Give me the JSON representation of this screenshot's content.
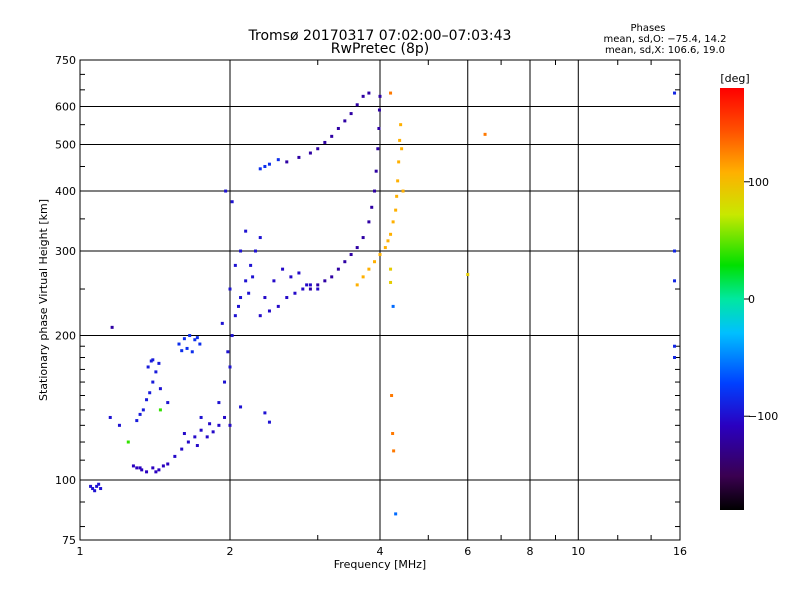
{
  "chart_data": {
    "type": "scatter",
    "title": "Tromsø 20170317 07:02:00–07:03:43",
    "subtitle": "RwPretec (8p)",
    "xlabel": "Frequency [MHz]",
    "ylabel": "Stationary phase Virtual Height [km]",
    "x_scale": "log",
    "y_scale": "log",
    "xlim": [
      1,
      16
    ],
    "ylim": [
      75,
      750
    ],
    "x_ticks": [
      1,
      2,
      4,
      6,
      8,
      10,
      16
    ],
    "x_tick_labels": [
      "1",
      "2",
      "4",
      "6",
      "8",
      "10",
      "16"
    ],
    "y_ticks": [
      75,
      100,
      200,
      300,
      400,
      500,
      600,
      750
    ],
    "y_tick_labels": [
      "75",
      "100",
      "200",
      "300",
      "400",
      "500",
      "600",
      "750"
    ],
    "grid": true,
    "stats": {
      "heading": "Phases",
      "line_o": "mean, sd,O: −75.4, 14.2",
      "line_x": "mean, sd,X: 106.6, 19.0"
    },
    "colorbar": {
      "label": "[deg]",
      "range": [
        -180,
        180
      ],
      "ticks": [
        100,
        0,
        -100
      ],
      "tick_labels": [
        "100",
        "0",
        "−100"
      ]
    },
    "series": [
      {
        "phase": -100,
        "points": [
          [
            1.05,
            97
          ],
          [
            1.06,
            96
          ],
          [
            1.08,
            97
          ],
          [
            1.09,
            98
          ],
          [
            1.07,
            95
          ],
          [
            1.1,
            96
          ]
        ]
      },
      {
        "phase": -110,
        "points": [
          [
            1.28,
            107
          ],
          [
            1.3,
            106
          ],
          [
            1.33,
            105
          ],
          [
            1.36,
            104
          ],
          [
            1.4,
            106
          ],
          [
            1.44,
            105
          ],
          [
            1.47,
            107
          ],
          [
            1.5,
            108
          ],
          [
            1.32,
            106
          ],
          [
            1.42,
            104
          ]
        ]
      },
      {
        "phase": -95,
        "points": [
          [
            1.3,
            133
          ],
          [
            1.32,
            137
          ],
          [
            1.34,
            140
          ],
          [
            1.36,
            147
          ],
          [
            1.38,
            152
          ],
          [
            1.4,
            160
          ],
          [
            1.42,
            168
          ],
          [
            1.44,
            175
          ],
          [
            1.4,
            178
          ],
          [
            1.37,
            172
          ],
          [
            1.39,
            177
          ]
        ]
      },
      {
        "phase": -85,
        "points": [
          [
            1.58,
            192
          ],
          [
            1.62,
            197
          ],
          [
            1.66,
            200
          ],
          [
            1.7,
            196
          ],
          [
            1.74,
            192
          ],
          [
            1.68,
            185
          ],
          [
            1.64,
            188
          ],
          [
            1.72,
            198
          ],
          [
            1.6,
            186
          ]
        ]
      },
      {
        "phase": -105,
        "points": [
          [
            1.55,
            112
          ],
          [
            1.6,
            116
          ],
          [
            1.65,
            120
          ],
          [
            1.7,
            123
          ],
          [
            1.75,
            127
          ],
          [
            1.8,
            123
          ],
          [
            1.85,
            126
          ],
          [
            1.9,
            130
          ],
          [
            1.95,
            135
          ],
          [
            2.0,
            130
          ],
          [
            1.62,
            125
          ],
          [
            1.72,
            118
          ],
          [
            1.82,
            131
          ]
        ]
      },
      {
        "phase": -100,
        "points": [
          [
            1.9,
            145
          ],
          [
            1.95,
            160
          ],
          [
            2.0,
            172
          ],
          [
            1.98,
            185
          ],
          [
            2.02,
            200
          ],
          [
            2.05,
            220
          ],
          [
            2.1,
            240
          ],
          [
            2.15,
            260
          ],
          [
            2.2,
            280
          ],
          [
            2.25,
            300
          ],
          [
            2.3,
            320
          ],
          [
            2.05,
            280
          ],
          [
            2.1,
            300
          ],
          [
            2.15,
            330
          ],
          [
            2.0,
            250
          ],
          [
            2.08,
            230
          ],
          [
            2.18,
            245
          ],
          [
            2.22,
            265
          ],
          [
            1.96,
            400
          ],
          [
            2.02,
            380
          ],
          [
            1.93,
            212
          ]
        ]
      },
      {
        "phase": -105,
        "points": [
          [
            2.3,
            220
          ],
          [
            2.4,
            225
          ],
          [
            2.5,
            230
          ],
          [
            2.6,
            240
          ],
          [
            2.7,
            245
          ],
          [
            2.8,
            250
          ],
          [
            2.9,
            255
          ],
          [
            3.0,
            250
          ],
          [
            2.45,
            260
          ],
          [
            2.55,
            275
          ],
          [
            2.65,
            265
          ],
          [
            2.75,
            270
          ],
          [
            2.85,
            255
          ],
          [
            2.35,
            240
          ]
        ]
      },
      {
        "phase": -120,
        "points": [
          [
            2.9,
            250
          ],
          [
            3.0,
            255
          ],
          [
            3.1,
            260
          ],
          [
            3.2,
            265
          ],
          [
            3.3,
            275
          ],
          [
            3.4,
            285
          ],
          [
            3.5,
            295
          ],
          [
            3.6,
            305
          ],
          [
            3.7,
            320
          ],
          [
            3.8,
            345
          ],
          [
            3.85,
            370
          ],
          [
            3.9,
            400
          ],
          [
            3.93,
            440
          ],
          [
            3.96,
            490
          ],
          [
            3.98,
            540
          ],
          [
            3.99,
            590
          ],
          [
            4.0,
            630
          ]
        ]
      },
      {
        "phase": -120,
        "points": [
          [
            2.6,
            460
          ],
          [
            2.75,
            470
          ],
          [
            2.9,
            480
          ],
          [
            3.0,
            490
          ],
          [
            3.1,
            505
          ],
          [
            3.2,
            520
          ],
          [
            3.3,
            540
          ],
          [
            3.4,
            560
          ],
          [
            3.5,
            580
          ],
          [
            3.6,
            605
          ],
          [
            3.7,
            630
          ],
          [
            3.8,
            640
          ]
        ]
      },
      {
        "phase": -85,
        "points": [
          [
            2.3,
            445
          ],
          [
            2.35,
            450
          ],
          [
            2.4,
            455
          ],
          [
            2.5,
            465
          ]
        ]
      },
      {
        "phase": 110,
        "points": [
          [
            3.6,
            255
          ],
          [
            3.7,
            265
          ],
          [
            3.8,
            275
          ],
          [
            3.9,
            285
          ],
          [
            4.0,
            295
          ],
          [
            4.1,
            305
          ],
          [
            4.15,
            315
          ],
          [
            4.2,
            325
          ],
          [
            4.25,
            345
          ],
          [
            4.3,
            365
          ],
          [
            4.32,
            390
          ],
          [
            4.34,
            420
          ],
          [
            4.36,
            460
          ],
          [
            4.38,
            510
          ],
          [
            4.4,
            550
          ],
          [
            4.42,
            490
          ],
          [
            4.45,
            400
          ]
        ]
      },
      {
        "phase": 130,
        "points": [
          [
            4.2,
            640
          ],
          [
            6.5,
            525
          ],
          [
            4.22,
            150
          ],
          [
            4.24,
            125
          ],
          [
            4.26,
            115
          ]
        ]
      },
      {
        "phase": 90,
        "points": [
          [
            4.2,
            275
          ],
          [
            4.2,
            258
          ],
          [
            6.0,
            268
          ]
        ]
      },
      {
        "phase": -60,
        "points": [
          [
            4.25,
            230
          ],
          [
            4.3,
            85
          ]
        ]
      },
      {
        "phase": -100,
        "points": [
          [
            1.15,
            135
          ],
          [
            1.2,
            130
          ],
          [
            1.45,
            155
          ],
          [
            1.5,
            145
          ],
          [
            1.75,
            135
          ],
          [
            2.1,
            142
          ],
          [
            2.35,
            138
          ],
          [
            2.4,
            132
          ]
        ]
      },
      {
        "phase": 40,
        "points": [
          [
            1.45,
            140
          ],
          [
            1.25,
            120
          ]
        ]
      },
      {
        "phase": -90,
        "points": [
          [
            15.6,
            300
          ],
          [
            15.6,
            640
          ],
          [
            15.6,
            260
          ],
          [
            15.6,
            190
          ],
          [
            15.6,
            180
          ]
        ]
      },
      {
        "phase": -120,
        "points": [
          [
            1.16,
            208
          ]
        ]
      }
    ]
  }
}
